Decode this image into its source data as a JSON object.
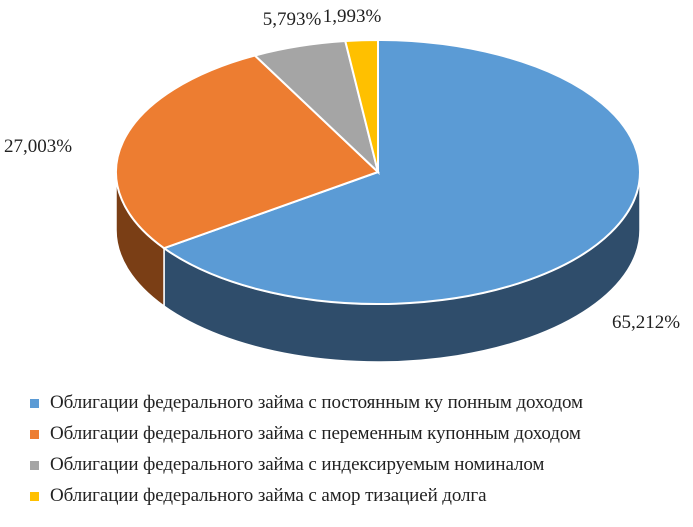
{
  "chart_data": {
    "type": "pie",
    "title": "",
    "series": [
      {
        "name": "Облигации федерального займа с постоянным ку понным доходом",
        "value": 65.212,
        "label": "65,212%",
        "color": "#5b9bd5",
        "side_color": "#2f4d6b"
      },
      {
        "name": "Облигации федерального займа с переменным купонным доходом",
        "value": 27.003,
        "label": "27,003%",
        "color": "#ed7d31",
        "side_color": "#7a3e15"
      },
      {
        "name": "Облигации федерального займа с индексируемым номиналом",
        "value": 5.793,
        "label": "5,793%",
        "color": "#a5a5a5",
        "side_color": "#555555"
      },
      {
        "name": "Облигации федерального займа с амор тизацией долга",
        "value": 1.993,
        "label": "1,993%",
        "color": "#ffc000",
        "side_color": "#8a6800"
      }
    ],
    "legend_position": "bottom"
  }
}
